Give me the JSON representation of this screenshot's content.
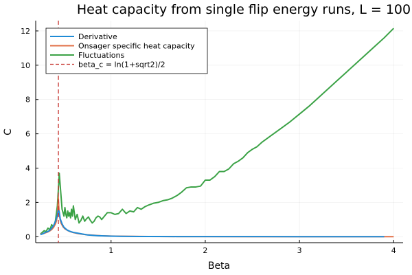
{
  "chart_data": {
    "type": "line",
    "title": "Heat capacity from single flip energy runs, L = 100",
    "xlabel": "Beta",
    "ylabel": "C",
    "xlim": [
      0.2,
      4.1
    ],
    "ylim": [
      -0.35,
      12.6
    ],
    "xticks": [
      1,
      2,
      3,
      4
    ],
    "xtick_labels": [
      "1",
      "2",
      "3",
      "4"
    ],
    "yticks": [
      0,
      2,
      4,
      6,
      8,
      10,
      12
    ],
    "ytick_labels": [
      "0",
      "2",
      "4",
      "6",
      "8",
      "10",
      "12"
    ],
    "grid": true,
    "legend_position": "top-left",
    "series": [
      {
        "name": "Derivative",
        "color": "#1f8bd6",
        "dash": "solid",
        "x": [
          0.25,
          0.28,
          0.3,
          0.33,
          0.35,
          0.37,
          0.39,
          0.41,
          0.43,
          0.44,
          0.45,
          0.46,
          0.48,
          0.5,
          0.53,
          0.56,
          0.6,
          0.65,
          0.7,
          0.75,
          0.8,
          0.85,
          0.9,
          0.95,
          1.0,
          1.1,
          1.2,
          1.3,
          1.5,
          2.0,
          2.5,
          3.0,
          3.5,
          3.9
        ],
        "y": [
          0.12,
          0.18,
          0.25,
          0.3,
          0.38,
          0.5,
          0.65,
          0.9,
          1.25,
          1.55,
          1.45,
          1.05,
          0.75,
          0.55,
          0.4,
          0.32,
          0.25,
          0.2,
          0.15,
          0.1,
          0.08,
          0.06,
          0.05,
          0.04,
          0.03,
          0.02,
          0.015,
          0.01,
          0.01,
          0.005,
          0.005,
          0.0,
          0.0,
          0.0
        ]
      },
      {
        "name": "Onsager specific heat capacity",
        "color": "#e26f46",
        "dash": "solid",
        "x": [
          0.25,
          0.28,
          0.3,
          0.33,
          0.35,
          0.37,
          0.39,
          0.41,
          0.42,
          0.43,
          0.435,
          0.44,
          0.445,
          0.45,
          0.46,
          0.47,
          0.49,
          0.51,
          0.54,
          0.57,
          0.6,
          0.65,
          0.7,
          0.75,
          0.8,
          0.85,
          0.9,
          1.0,
          1.1,
          1.2,
          1.4,
          1.7,
          2.0,
          2.5,
          3.0,
          3.5,
          4.0
        ],
        "y": [
          0.14,
          0.18,
          0.22,
          0.28,
          0.34,
          0.42,
          0.55,
          0.75,
          0.92,
          1.25,
          1.65,
          2.3,
          1.75,
          1.35,
          0.98,
          0.78,
          0.58,
          0.46,
          0.36,
          0.29,
          0.24,
          0.18,
          0.14,
          0.11,
          0.09,
          0.07,
          0.05,
          0.035,
          0.025,
          0.02,
          0.012,
          0.008,
          0.005,
          0.003,
          0.002,
          0.001,
          0.001
        ]
      },
      {
        "name": "Fluctuations",
        "color": "#3ba246",
        "dash": "solid",
        "x": [
          0.25,
          0.27,
          0.29,
          0.31,
          0.33,
          0.35,
          0.37,
          0.39,
          0.41,
          0.43,
          0.44,
          0.45,
          0.46,
          0.47,
          0.48,
          0.49,
          0.5,
          0.51,
          0.52,
          0.53,
          0.54,
          0.55,
          0.56,
          0.57,
          0.58,
          0.59,
          0.6,
          0.62,
          0.64,
          0.66,
          0.68,
          0.7,
          0.72,
          0.74,
          0.76,
          0.78,
          0.8,
          0.82,
          0.84,
          0.86,
          0.88,
          0.9,
          0.93,
          0.96,
          1.0,
          1.04,
          1.08,
          1.12,
          1.16,
          1.2,
          1.24,
          1.28,
          1.32,
          1.36,
          1.4,
          1.45,
          1.5,
          1.55,
          1.6,
          1.65,
          1.7,
          1.75,
          1.8,
          1.85,
          1.9,
          1.95,
          2.0,
          2.05,
          2.1,
          2.15,
          2.2,
          2.25,
          2.3,
          2.35,
          2.4,
          2.45,
          2.5,
          2.55,
          2.6,
          2.7,
          2.8,
          2.9,
          3.0,
          3.1,
          3.2,
          3.3,
          3.4,
          3.5,
          3.6,
          3.7,
          3.8,
          3.9,
          4.0
        ],
        "y": [
          0.15,
          0.25,
          0.35,
          0.3,
          0.5,
          0.4,
          0.7,
          0.55,
          0.95,
          1.8,
          2.7,
          3.7,
          3.0,
          2.3,
          1.6,
          1.4,
          1.2,
          1.7,
          1.3,
          1.1,
          1.5,
          1.2,
          1.4,
          1.1,
          1.6,
          1.2,
          1.8,
          1.0,
          1.3,
          0.8,
          0.95,
          1.2,
          0.9,
          1.05,
          1.15,
          0.95,
          0.8,
          0.9,
          1.1,
          1.2,
          1.15,
          1.0,
          1.2,
          1.4,
          1.4,
          1.3,
          1.35,
          1.6,
          1.35,
          1.5,
          1.45,
          1.7,
          1.6,
          1.75,
          1.85,
          1.95,
          2.0,
          2.1,
          2.15,
          2.25,
          2.4,
          2.6,
          2.85,
          2.9,
          2.9,
          2.95,
          3.3,
          3.3,
          3.5,
          3.8,
          3.8,
          3.95,
          4.25,
          4.4,
          4.6,
          4.9,
          5.1,
          5.25,
          5.5,
          5.9,
          6.3,
          6.7,
          7.15,
          7.6,
          8.1,
          8.6,
          9.1,
          9.6,
          10.1,
          10.6,
          11.1,
          11.6,
          12.15
        ]
      },
      {
        "name": "beta_c = ln(1+sqrt2)/2",
        "color": "#c4302b",
        "dash": "dashed",
        "vline_x": 0.4407
      }
    ]
  }
}
